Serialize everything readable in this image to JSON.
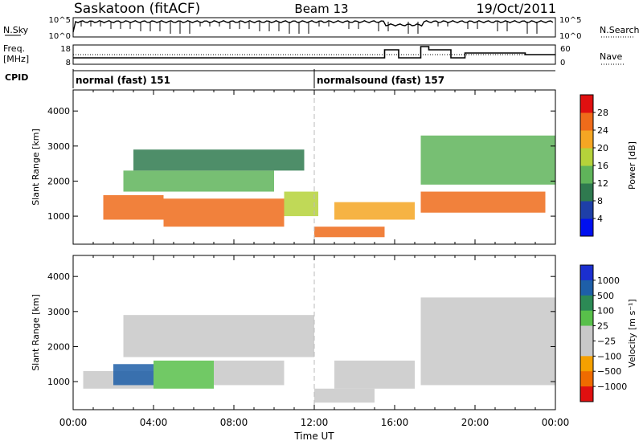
{
  "header": {
    "station": "Saskatoon (fitACF)",
    "beam": "Beam 13",
    "date": "19/Oct/2011"
  },
  "top_panels": {
    "nsky_label": "N.Sky",
    "nsky_ticks": [
      "10^5",
      "10^0"
    ],
    "nsearch_label": "N.Search",
    "nsearch_ticks": [
      "10^5",
      "10^0"
    ],
    "freq_label": "Freq.",
    "freq_unit": "[MHz]",
    "freq_ticks": [
      "18",
      "8"
    ],
    "nave_label": "Nave",
    "nave_ticks": [
      "60",
      "0"
    ],
    "cpid_label": "CPID",
    "cpid_segments": [
      {
        "label": "normal (fast) 151",
        "start_hour": 0
      },
      {
        "label": "normalsound (fast) 157",
        "start_hour": 12
      }
    ]
  },
  "colors": {
    "power_scale": [
      "#0010f0",
      "#1e3fa8",
      "#2f7a4f",
      "#5fb45a",
      "#b5d23a",
      "#f5a623",
      "#ef6b1a",
      "#e01010"
    ],
    "velocity_scale": [
      "#1b2fd0",
      "#1e5fa8",
      "#2c8a55",
      "#58c04a",
      "#c8c8c8",
      "#c8c8c8",
      "#f5a000",
      "#ef6b00",
      "#e01010"
    ]
  },
  "chart_data": [
    {
      "type": "heatmap",
      "title": "",
      "xlabel": "Time UT",
      "ylabel": "Slant Range [km]",
      "x_ticks": [
        "00:00",
        "04:00",
        "08:00",
        "12:00",
        "16:00",
        "20:00",
        "00:00"
      ],
      "y_ticks": [
        "1000",
        "2000",
        "3000",
        "4000"
      ],
      "xlim": [
        0,
        24
      ],
      "ylim": [
        200,
        4600
      ],
      "colorbar": {
        "label": "Power [dB]",
        "ticks": [
          "4",
          "8",
          "12",
          "16",
          "20",
          "24",
          "28"
        ],
        "range": [
          0,
          32
        ]
      },
      "bands": [
        {
          "x": [
            1.5,
            4.5
          ],
          "y": [
            900,
            1600
          ],
          "value": 26
        },
        {
          "x": [
            4.5,
            10.5
          ],
          "y": [
            700,
            1500
          ],
          "value": 24
        },
        {
          "x": [
            10.5,
            12.2
          ],
          "y": [
            1000,
            1700
          ],
          "value": 18
        },
        {
          "x": [
            2.5,
            10.0
          ],
          "y": [
            1700,
            2300
          ],
          "value": 14
        },
        {
          "x": [
            3.0,
            11.5
          ],
          "y": [
            2300,
            2900
          ],
          "value": 8
        },
        {
          "x": [
            12.0,
            15.5
          ],
          "y": [
            400,
            700
          ],
          "value": 26
        },
        {
          "x": [
            13.0,
            17.0
          ],
          "y": [
            900,
            1400
          ],
          "value": 22
        },
        {
          "x": [
            17.3,
            23.5
          ],
          "y": [
            1100,
            1700
          ],
          "value": 27
        },
        {
          "x": [
            17.3,
            24.0
          ],
          "y": [
            1900,
            3300
          ],
          "value": 12
        }
      ]
    },
    {
      "type": "heatmap",
      "title": "",
      "xlabel": "Time UT",
      "ylabel": "Slant Range [km]",
      "x_ticks": [
        "00:00",
        "04:00",
        "08:00",
        "12:00",
        "16:00",
        "20:00",
        "00:00"
      ],
      "y_ticks": [
        "1000",
        "2000",
        "3000",
        "4000"
      ],
      "xlim": [
        0,
        24
      ],
      "ylim": [
        200,
        4600
      ],
      "colorbar": {
        "label": "Velocity [m s⁻¹]",
        "ticks": [
          "1000",
          "500",
          "100",
          "25",
          "−25",
          "−100",
          "−500",
          "−1000"
        ],
        "range": [
          -1200,
          1200
        ]
      },
      "bands": [
        {
          "x": [
            0.5,
            4.0
          ],
          "y": [
            800,
            1300
          ],
          "value": 0
        },
        {
          "x": [
            2.0,
            4.0
          ],
          "y": [
            900,
            1500
          ],
          "value": 900
        },
        {
          "x": [
            4.0,
            7.0
          ],
          "y": [
            800,
            1600
          ],
          "value": 300
        },
        {
          "x": [
            7.0,
            10.5
          ],
          "y": [
            900,
            1600
          ],
          "value": -400
        },
        {
          "x": [
            2.5,
            12.0
          ],
          "y": [
            1700,
            2900
          ],
          "value": 0
        },
        {
          "x": [
            12.0,
            15.0
          ],
          "y": [
            400,
            800
          ],
          "value": -200
        },
        {
          "x": [
            13.0,
            17.0
          ],
          "y": [
            800,
            1600
          ],
          "value": 0
        },
        {
          "x": [
            17.3,
            24.0
          ],
          "y": [
            900,
            3400
          ],
          "value": 0
        }
      ]
    }
  ]
}
